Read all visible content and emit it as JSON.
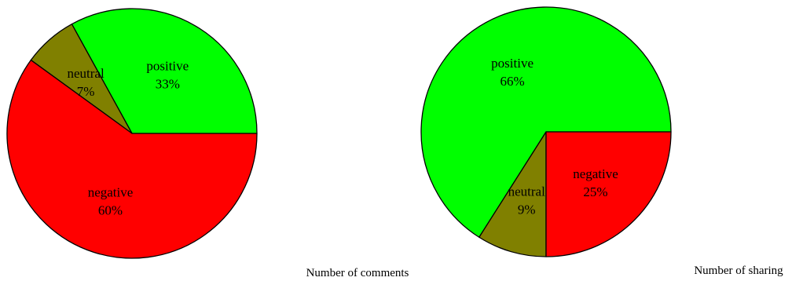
{
  "chart_data": [
    {
      "type": "pie",
      "title": "Number of comments",
      "slices": [
        {
          "label": "positive",
          "value": 33,
          "value_text": "33%",
          "color": "#00ff00"
        },
        {
          "label": "neutral",
          "value": 7,
          "value_text": "7%",
          "color": "#808000"
        },
        {
          "label": "negative",
          "value": 60,
          "value_text": "60%",
          "color": "#ff0000"
        }
      ],
      "legend": "none"
    },
    {
      "type": "pie",
      "title": "Number of sharing",
      "slices": [
        {
          "label": "positive",
          "value": 66,
          "value_text": "66%",
          "color": "#00ff00"
        },
        {
          "label": "neutral",
          "value": 9,
          "value_text": "9%",
          "color": "#808000"
        },
        {
          "label": "negative",
          "value": 25,
          "value_text": "25%",
          "color": "#ff0000"
        }
      ],
      "legend": "none"
    }
  ]
}
